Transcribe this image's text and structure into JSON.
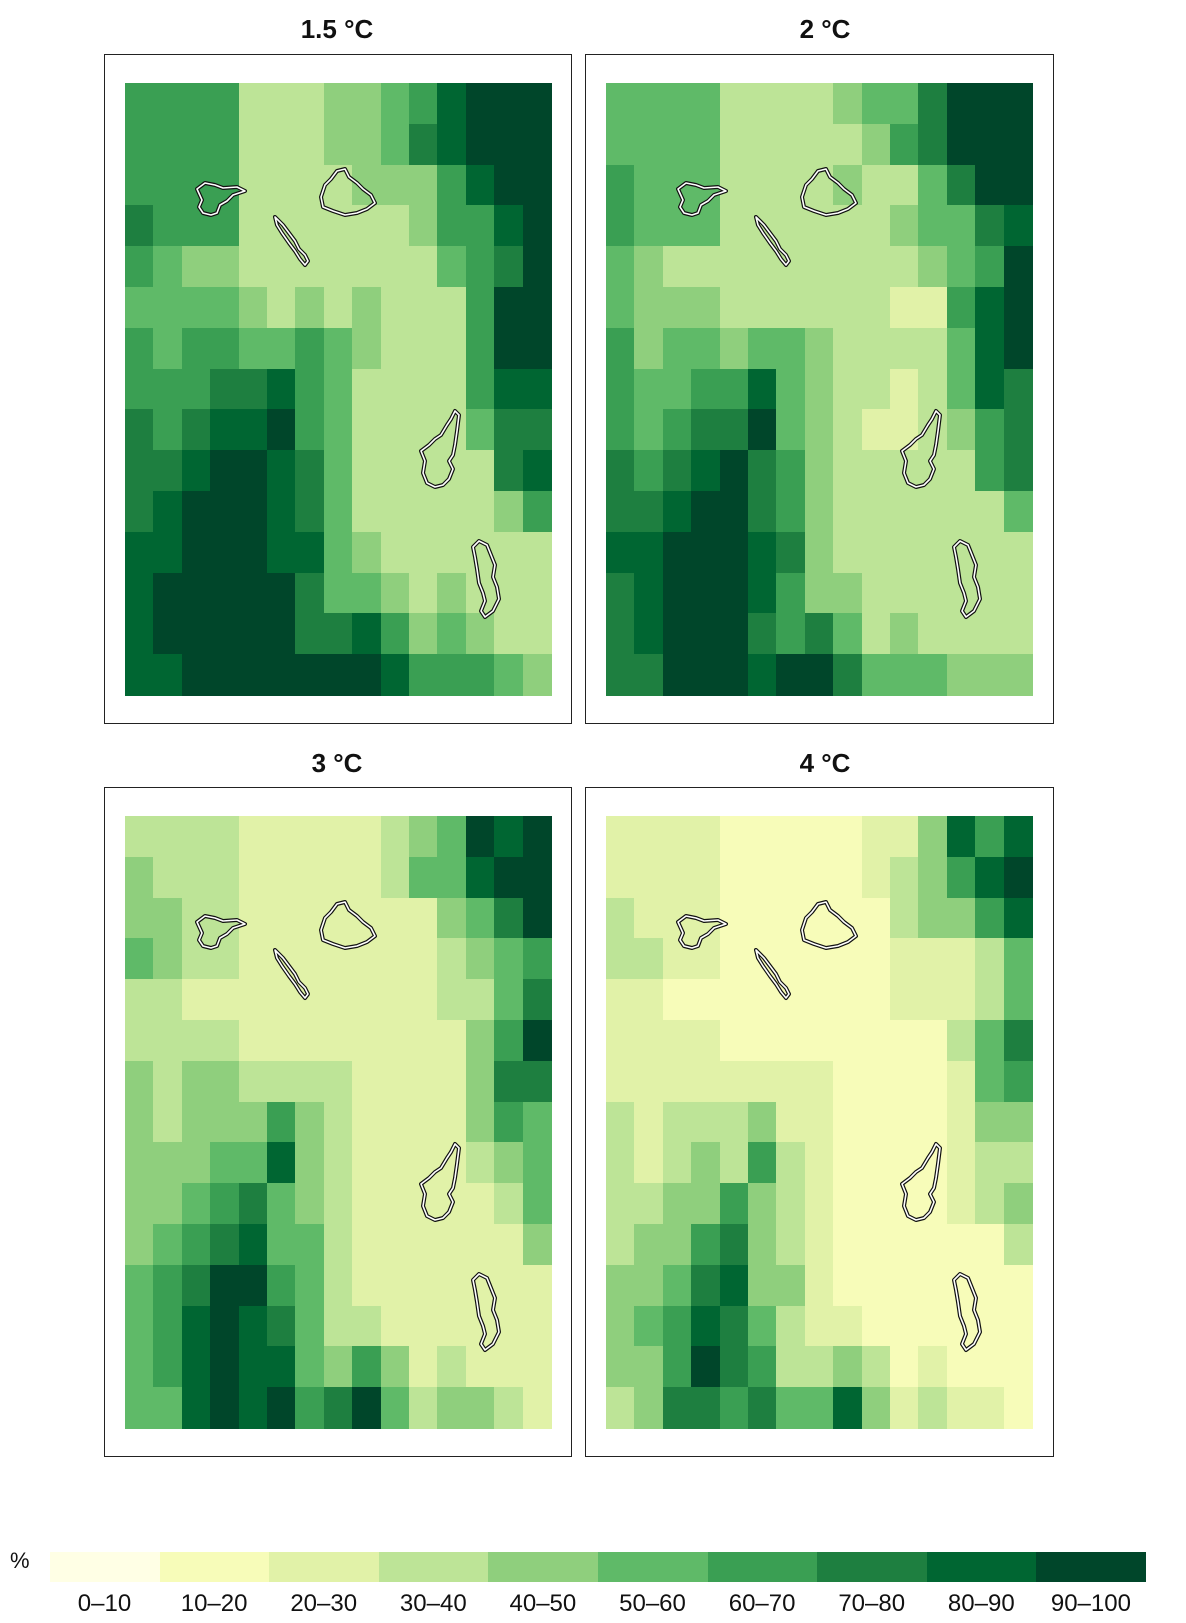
{
  "palette": [
    "#ffffe5",
    "#f7fcb9",
    "#e1f2a8",
    "#bde497",
    "#8fcf7d",
    "#5fba68",
    "#3a9f53",
    "#1e7f40",
    "#006632",
    "#00462a"
  ],
  "legend": {
    "unit": "%",
    "labels": [
      "0–10",
      "10–20",
      "20–30",
      "30–40",
      "40–50",
      "50–60",
      "60–70",
      "70–80",
      "80–90",
      "90–100"
    ]
  },
  "panels": [
    {
      "title": "1.5 °C",
      "grid": [
        [
          6,
          6,
          6,
          6,
          3,
          3,
          3,
          4,
          4,
          5,
          6,
          8,
          9,
          9,
          9
        ],
        [
          6,
          6,
          6,
          6,
          3,
          3,
          3,
          4,
          4,
          5,
          7,
          8,
          9,
          9,
          9
        ],
        [
          6,
          6,
          6,
          6,
          3,
          3,
          3,
          3,
          4,
          4,
          4,
          6,
          8,
          9,
          9
        ],
        [
          7,
          6,
          6,
          6,
          3,
          3,
          3,
          3,
          3,
          3,
          4,
          6,
          6,
          8,
          9
        ],
        [
          6,
          5,
          4,
          4,
          3,
          3,
          3,
          3,
          3,
          3,
          3,
          5,
          6,
          7,
          9
        ],
        [
          5,
          5,
          5,
          5,
          4,
          3,
          4,
          3,
          4,
          3,
          3,
          3,
          6,
          9,
          9
        ],
        [
          6,
          5,
          6,
          6,
          5,
          5,
          6,
          5,
          4,
          3,
          3,
          3,
          6,
          9,
          9
        ],
        [
          6,
          6,
          6,
          7,
          7,
          8,
          6,
          5,
          3,
          3,
          3,
          3,
          6,
          8,
          8
        ],
        [
          7,
          6,
          7,
          8,
          8,
          9,
          6,
          5,
          3,
          3,
          3,
          3,
          5,
          7,
          7
        ],
        [
          7,
          7,
          8,
          9,
          9,
          8,
          7,
          5,
          3,
          3,
          3,
          3,
          3,
          7,
          8
        ],
        [
          7,
          8,
          9,
          9,
          9,
          8,
          7,
          5,
          3,
          3,
          3,
          3,
          3,
          4,
          6
        ],
        [
          8,
          8,
          9,
          9,
          9,
          8,
          8,
          5,
          4,
          3,
          3,
          3,
          3,
          3,
          3
        ],
        [
          8,
          9,
          9,
          9,
          9,
          9,
          7,
          5,
          5,
          4,
          3,
          4,
          3,
          3,
          3
        ],
        [
          8,
          9,
          9,
          9,
          9,
          9,
          7,
          7,
          8,
          6,
          4,
          5,
          4,
          3,
          3
        ],
        [
          8,
          8,
          9,
          9,
          9,
          9,
          9,
          9,
          9,
          8,
          6,
          6,
          6,
          5,
          4
        ]
      ]
    },
    {
      "title": "2 °C",
      "grid": [
        [
          5,
          5,
          5,
          5,
          3,
          3,
          3,
          3,
          4,
          5,
          5,
          7,
          9,
          9,
          9
        ],
        [
          5,
          5,
          5,
          5,
          3,
          3,
          3,
          3,
          3,
          4,
          6,
          7,
          9,
          9,
          9
        ],
        [
          6,
          5,
          5,
          5,
          3,
          3,
          3,
          3,
          4,
          3,
          3,
          5,
          7,
          9,
          9
        ],
        [
          6,
          5,
          5,
          5,
          3,
          3,
          3,
          3,
          3,
          3,
          4,
          5,
          5,
          7,
          8
        ],
        [
          5,
          4,
          3,
          3,
          3,
          3,
          3,
          3,
          3,
          3,
          3,
          4,
          5,
          6,
          9
        ],
        [
          5,
          4,
          4,
          4,
          3,
          3,
          3,
          3,
          3,
          3,
          2,
          2,
          6,
          8,
          9
        ],
        [
          6,
          4,
          5,
          5,
          4,
          5,
          5,
          4,
          3,
          3,
          3,
          3,
          5,
          8,
          9
        ],
        [
          6,
          5,
          5,
          6,
          6,
          8,
          5,
          4,
          3,
          3,
          2,
          3,
          5,
          8,
          7
        ],
        [
          6,
          5,
          6,
          7,
          7,
          9,
          5,
          4,
          3,
          2,
          2,
          3,
          4,
          6,
          7
        ],
        [
          7,
          6,
          7,
          8,
          9,
          7,
          6,
          4,
          3,
          3,
          3,
          3,
          3,
          6,
          7
        ],
        [
          7,
          7,
          8,
          9,
          9,
          7,
          6,
          4,
          3,
          3,
          3,
          3,
          3,
          3,
          5
        ],
        [
          8,
          8,
          9,
          9,
          9,
          8,
          7,
          4,
          3,
          3,
          3,
          3,
          3,
          3,
          3
        ],
        [
          7,
          8,
          9,
          9,
          9,
          8,
          6,
          4,
          4,
          3,
          3,
          3,
          3,
          3,
          3
        ],
        [
          7,
          8,
          9,
          9,
          9,
          7,
          6,
          7,
          5,
          3,
          4,
          3,
          3,
          3,
          3
        ],
        [
          7,
          7,
          9,
          9,
          9,
          8,
          9,
          9,
          7,
          5,
          5,
          5,
          4,
          4,
          4
        ]
      ]
    },
    {
      "title": "3 °C",
      "grid": [
        [
          3,
          3,
          3,
          3,
          2,
          2,
          2,
          2,
          2,
          3,
          4,
          5,
          9,
          8,
          9
        ],
        [
          4,
          3,
          3,
          3,
          2,
          2,
          2,
          2,
          2,
          3,
          5,
          5,
          8,
          9,
          9
        ],
        [
          4,
          4,
          3,
          3,
          2,
          2,
          2,
          2,
          2,
          2,
          2,
          4,
          5,
          7,
          9
        ],
        [
          5,
          4,
          3,
          3,
          2,
          2,
          2,
          2,
          2,
          2,
          2,
          3,
          4,
          5,
          6
        ],
        [
          3,
          3,
          2,
          2,
          2,
          2,
          2,
          2,
          2,
          2,
          2,
          3,
          3,
          5,
          7
        ],
        [
          3,
          3,
          3,
          3,
          2,
          2,
          2,
          2,
          2,
          2,
          2,
          2,
          4,
          6,
          9
        ],
        [
          4,
          3,
          4,
          4,
          3,
          3,
          3,
          3,
          2,
          2,
          2,
          2,
          4,
          7,
          7
        ],
        [
          4,
          3,
          4,
          4,
          4,
          6,
          4,
          3,
          2,
          2,
          2,
          2,
          4,
          6,
          5
        ],
        [
          4,
          4,
          4,
          5,
          5,
          8,
          4,
          3,
          2,
          2,
          2,
          2,
          3,
          4,
          5
        ],
        [
          4,
          4,
          5,
          6,
          7,
          5,
          4,
          3,
          2,
          2,
          2,
          2,
          2,
          3,
          5
        ],
        [
          4,
          5,
          6,
          7,
          8,
          5,
          5,
          3,
          2,
          2,
          2,
          2,
          2,
          2,
          4
        ],
        [
          5,
          6,
          7,
          9,
          9,
          6,
          5,
          3,
          2,
          2,
          2,
          2,
          2,
          2,
          2
        ],
        [
          5,
          6,
          8,
          9,
          8,
          7,
          5,
          3,
          3,
          2,
          2,
          2,
          2,
          2,
          2
        ],
        [
          5,
          6,
          8,
          9,
          8,
          8,
          5,
          4,
          6,
          4,
          2,
          3,
          2,
          2,
          2
        ],
        [
          5,
          5,
          8,
          9,
          8,
          9,
          6,
          7,
          9,
          5,
          3,
          4,
          4,
          3,
          2
        ]
      ]
    },
    {
      "title": "4 °C",
      "grid": [
        [
          2,
          2,
          2,
          2,
          1,
          1,
          1,
          1,
          1,
          2,
          2,
          4,
          8,
          6,
          8
        ],
        [
          2,
          2,
          2,
          2,
          1,
          1,
          1,
          1,
          1,
          2,
          3,
          4,
          6,
          8,
          9
        ],
        [
          3,
          2,
          2,
          2,
          1,
          1,
          1,
          1,
          1,
          1,
          3,
          4,
          4,
          6,
          8
        ],
        [
          3,
          3,
          2,
          2,
          1,
          1,
          1,
          1,
          1,
          1,
          2,
          2,
          2,
          3,
          5
        ],
        [
          2,
          2,
          1,
          1,
          1,
          1,
          1,
          1,
          1,
          1,
          2,
          2,
          2,
          3,
          5
        ],
        [
          2,
          2,
          2,
          2,
          1,
          1,
          1,
          1,
          1,
          1,
          1,
          1,
          3,
          5,
          7
        ],
        [
          2,
          2,
          2,
          2,
          2,
          2,
          2,
          2,
          1,
          1,
          1,
          1,
          2,
          5,
          6
        ],
        [
          3,
          2,
          3,
          3,
          3,
          4,
          2,
          2,
          1,
          1,
          1,
          1,
          2,
          4,
          4
        ],
        [
          3,
          2,
          3,
          4,
          3,
          6,
          3,
          2,
          1,
          1,
          1,
          1,
          2,
          3,
          3
        ],
        [
          3,
          3,
          4,
          4,
          6,
          4,
          3,
          2,
          1,
          1,
          1,
          1,
          2,
          3,
          4
        ],
        [
          3,
          4,
          4,
          6,
          7,
          4,
          3,
          2,
          1,
          1,
          1,
          1,
          1,
          1,
          3
        ],
        [
          4,
          4,
          5,
          7,
          8,
          4,
          4,
          2,
          1,
          1,
          1,
          1,
          1,
          1,
          1
        ],
        [
          4,
          5,
          6,
          8,
          7,
          5,
          3,
          2,
          2,
          1,
          1,
          1,
          1,
          1,
          1
        ],
        [
          4,
          4,
          6,
          9,
          7,
          6,
          3,
          3,
          4,
          3,
          1,
          2,
          1,
          1,
          1
        ],
        [
          3,
          4,
          7,
          7,
          6,
          7,
          5,
          5,
          8,
          4,
          2,
          3,
          2,
          2,
          1
        ]
      ]
    }
  ]
}
